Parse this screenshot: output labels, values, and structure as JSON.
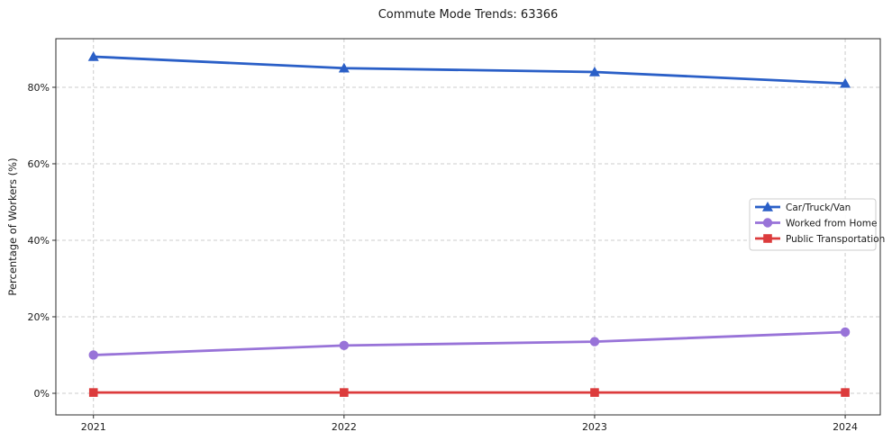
{
  "chart_data": {
    "type": "line",
    "title": "Commute Mode Trends: 63366",
    "xlabel": "",
    "ylabel": "Percentage of Workers (%)",
    "x": [
      2021,
      2022,
      2023,
      2024
    ],
    "x_tick_labels": [
      "2021",
      "2022",
      "2023",
      "2024"
    ],
    "y_ticks": [
      0,
      20,
      40,
      60,
      80
    ],
    "y_tick_labels": [
      "0%",
      "20%",
      "40%",
      "60%",
      "80%"
    ],
    "xlim": [
      2020.85,
      2024.14
    ],
    "ylim": [
      -5.65,
      92.7
    ],
    "grid": true,
    "grid_style": "dashed",
    "legend_position": "center-right",
    "series": [
      {
        "name": "Car/Truck/Van",
        "values": [
          88,
          85,
          84,
          81
        ],
        "color": "#2a5fc7",
        "marker": "triangle"
      },
      {
        "name": "Worked from Home",
        "values": [
          10,
          12.5,
          13.5,
          16
        ],
        "color": "#9873d8",
        "marker": "circle"
      },
      {
        "name": "Public Transportation",
        "values": [
          0.2,
          0.2,
          0.2,
          0.2
        ],
        "color": "#dc3b3c",
        "marker": "square"
      }
    ],
    "colors": {
      "gridline": "#cccccc",
      "spine": "#2b2b2b",
      "text": "#1a1a1a",
      "legend_border": "#cccccc",
      "background": "#ffffff"
    }
  }
}
